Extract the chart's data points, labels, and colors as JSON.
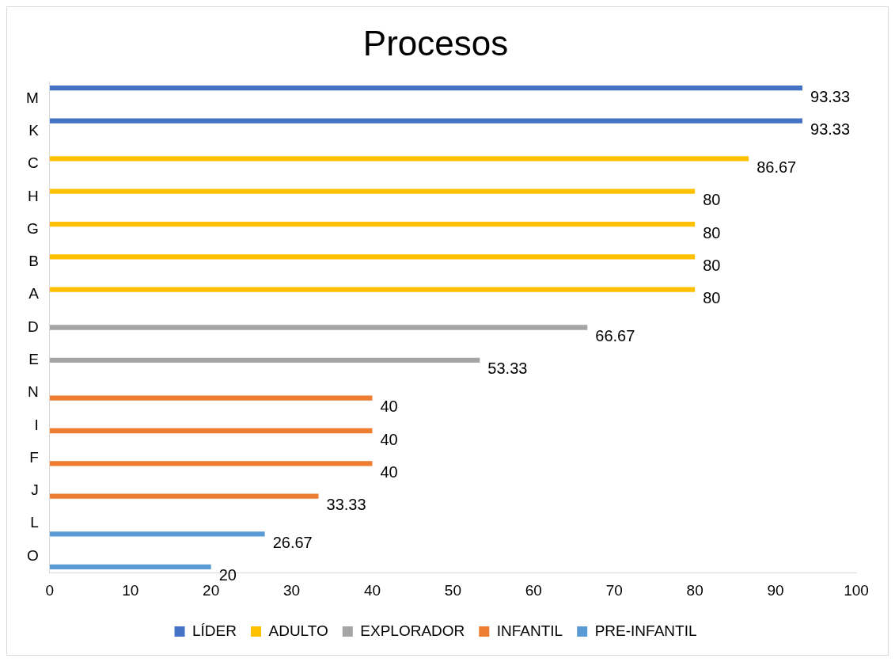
{
  "chart_data": {
    "type": "bar",
    "orientation": "horizontal",
    "title": "Procesos",
    "categories": [
      "M",
      "K",
      "C",
      "H",
      "G",
      "B",
      "A",
      "D",
      "E",
      "N",
      "I",
      "F",
      "J",
      "L",
      "O"
    ],
    "series": [
      {
        "name": "LÍDER",
        "color": "#4472c4",
        "values": [
          93.33,
          93.33,
          null,
          null,
          null,
          null,
          null,
          null,
          null,
          null,
          null,
          null,
          null,
          null,
          null
        ]
      },
      {
        "name": "ADULTO",
        "color": "#ffc000",
        "values": [
          null,
          null,
          86.67,
          80,
          80,
          80,
          80,
          null,
          null,
          null,
          null,
          null,
          null,
          null,
          null
        ]
      },
      {
        "name": "EXPLORADOR",
        "color": "#a5a5a5",
        "values": [
          null,
          null,
          null,
          null,
          null,
          null,
          null,
          66.67,
          53.33,
          null,
          null,
          null,
          null,
          null,
          null
        ]
      },
      {
        "name": "INFANTIL",
        "color": "#ed7d31",
        "values": [
          null,
          null,
          null,
          null,
          null,
          null,
          null,
          null,
          null,
          40,
          40,
          40,
          33.33,
          null,
          null
        ]
      },
      {
        "name": "PRE-INFANTIL",
        "color": "#5b9bd5",
        "values": [
          null,
          null,
          null,
          null,
          null,
          null,
          null,
          null,
          null,
          null,
          null,
          null,
          null,
          26.67,
          20
        ]
      }
    ],
    "xlim": [
      0,
      100
    ],
    "xticks": [
      0,
      10,
      20,
      30,
      40,
      50,
      60,
      70,
      80,
      90,
      100
    ],
    "grid": false,
    "legend": "bottom",
    "data_labels": true
  }
}
